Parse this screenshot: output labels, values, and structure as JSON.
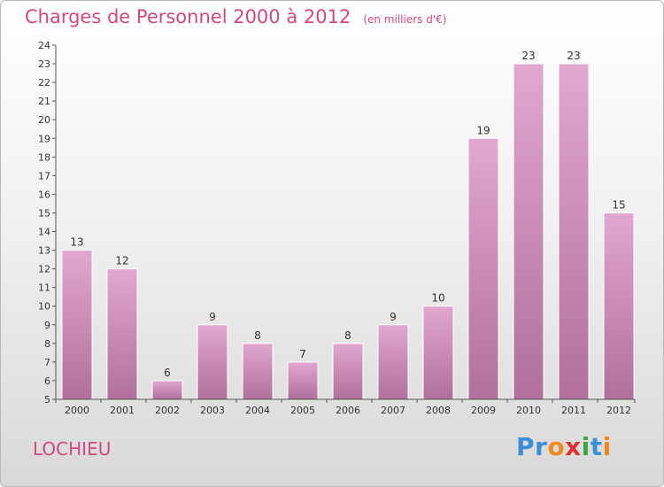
{
  "header": {
    "title": "Charges de Personnel 2000 à 2012",
    "subtitle": "(en milliers d'€)"
  },
  "footer": {
    "place": "LOCHIEU",
    "brand": "Proxiti",
    "brand_letters": [
      {
        "ch": "P",
        "color": "#3a8fd6"
      },
      {
        "ch": "r",
        "color": "#3a8fd6"
      },
      {
        "ch": "o",
        "color": "#f08a1c"
      },
      {
        "ch": "x",
        "color": "#e03030"
      },
      {
        "ch": "i",
        "color": "#3aa83a"
      },
      {
        "ch": "t",
        "color": "#3a8fd6"
      },
      {
        "ch": "i",
        "color": "#f08a1c"
      }
    ]
  },
  "chart_data": {
    "type": "bar",
    "title": "Charges de Personnel 2000 à 2012",
    "subtitle": "(en milliers d'€)",
    "categories": [
      "2000",
      "2001",
      "2002",
      "2003",
      "2004",
      "2005",
      "2006",
      "2007",
      "2008",
      "2009",
      "2010",
      "2011",
      "2012"
    ],
    "values": [
      13,
      12,
      6,
      9,
      8,
      7,
      8,
      9,
      10,
      19,
      23,
      23,
      15
    ],
    "ylim": [
      5,
      24
    ],
    "yticks": [
      5,
      6,
      7,
      8,
      9,
      10,
      11,
      12,
      13,
      14,
      15,
      16,
      17,
      18,
      19,
      20,
      21,
      22,
      23,
      24
    ],
    "grid": false,
    "legend": "none",
    "colors": {
      "bar_top": "#e2a8cf",
      "bar_bottom": "#b0709a",
      "axis": "#555555",
      "text": "#333333"
    }
  }
}
